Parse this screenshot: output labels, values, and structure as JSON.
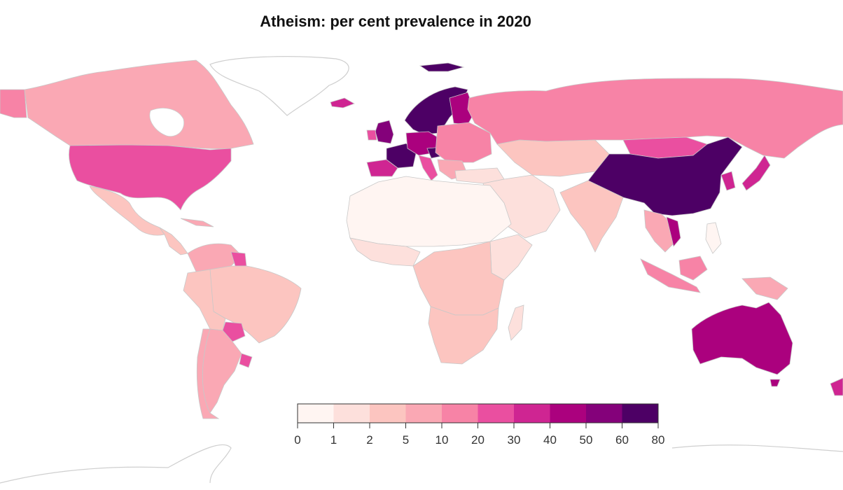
{
  "title": "Atheism: per cent prevalence in 2020",
  "legend": {
    "breaks": [
      "0",
      "1",
      "2",
      "5",
      "10",
      "20",
      "30",
      "40",
      "50",
      "60",
      "80"
    ],
    "colors": [
      "#fff5f2",
      "#fde0dc",
      "#fcc5c0",
      "#faa8b4",
      "#f783a6",
      "#ea4fa0",
      "#cf2592",
      "#ab017e",
      "#84017a",
      "#4d0065"
    ]
  },
  "palette": {
    "border": "#c8c8c8",
    "land_no_data": "#ffffff"
  }
}
